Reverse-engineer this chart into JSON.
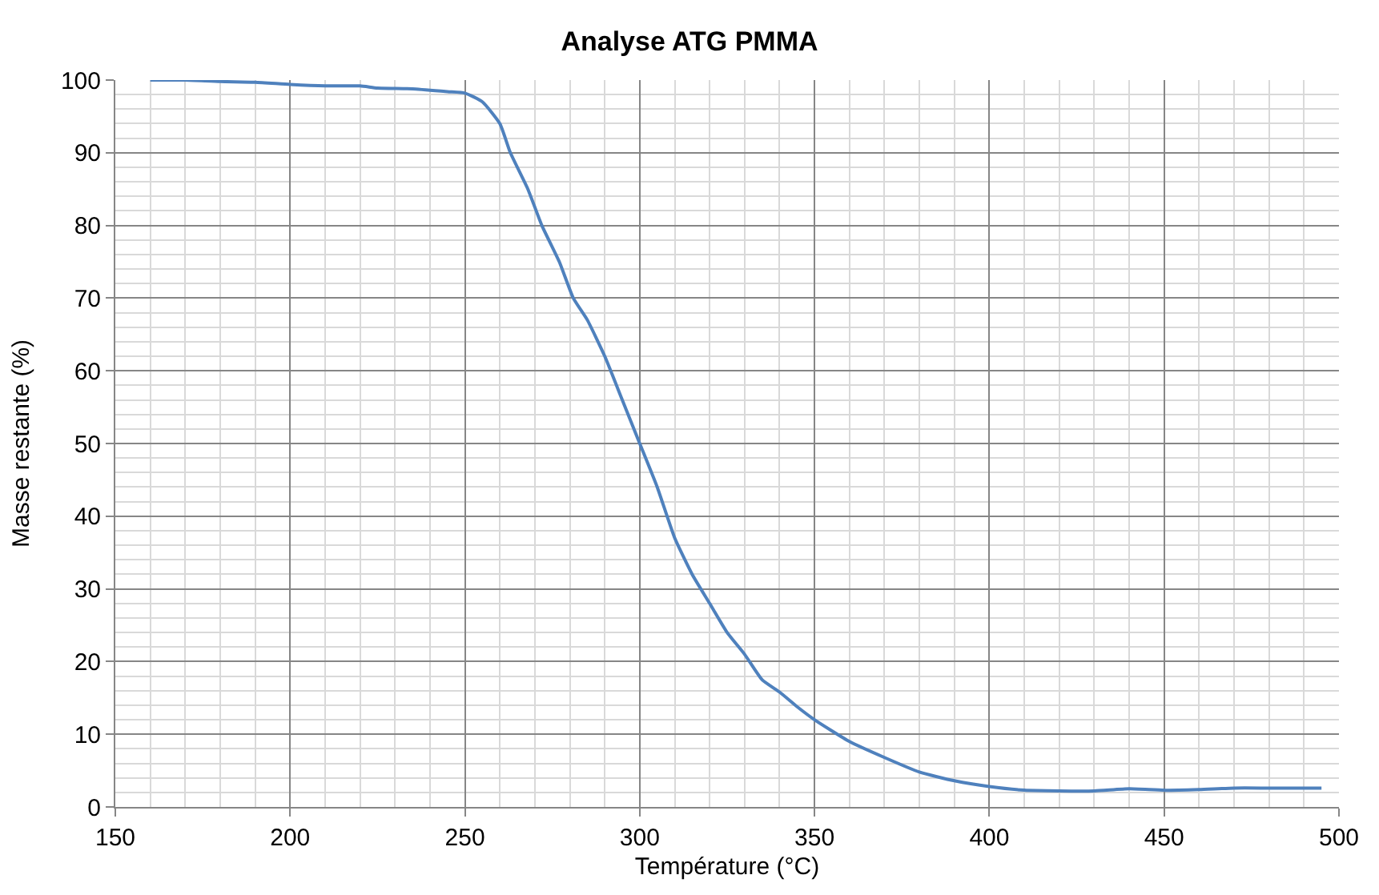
{
  "chart_data": {
    "type": "line",
    "title": "Analyse ATG PMMA",
    "xlabel": "Température (°C)",
    "ylabel": "Masse restante (%)",
    "x": [
      160,
      170,
      180,
      190,
      200,
      210,
      220,
      225,
      235,
      245,
      250,
      255,
      260,
      263,
      268,
      272,
      277,
      281,
      285,
      290,
      295,
      300,
      305,
      310,
      315,
      320,
      325,
      330,
      335,
      340,
      345,
      350,
      360,
      370,
      380,
      390,
      400,
      410,
      420,
      430,
      440,
      450,
      460,
      470,
      480,
      495
    ],
    "series": [
      {
        "color": "#4f81bd",
        "values": [
          100,
          100,
          99.8,
          99.7,
          99.4,
          99.2,
          99.2,
          98.9,
          98.8,
          98.4,
          98.2,
          97,
          94,
          90,
          85,
          80,
          75,
          70,
          67,
          62,
          56,
          50,
          44,
          37,
          32,
          28,
          24,
          21,
          17.5,
          15.8,
          13.8,
          12,
          9,
          6.8,
          4.8,
          3.6,
          2.8,
          2.3,
          2.2,
          2.2,
          2.5,
          2.3,
          2.4,
          2.6,
          2.6,
          2.6
        ]
      }
    ],
    "xlim": [
      150,
      500
    ],
    "xticks": [
      150,
      200,
      250,
      300,
      350,
      400,
      450,
      500
    ],
    "ylim": [
      0,
      100
    ],
    "yticks": [
      0,
      10,
      20,
      30,
      40,
      50,
      60,
      70,
      80,
      90,
      100
    ],
    "grid": true,
    "legend": false,
    "marker": "none",
    "line_style": "solid"
  }
}
